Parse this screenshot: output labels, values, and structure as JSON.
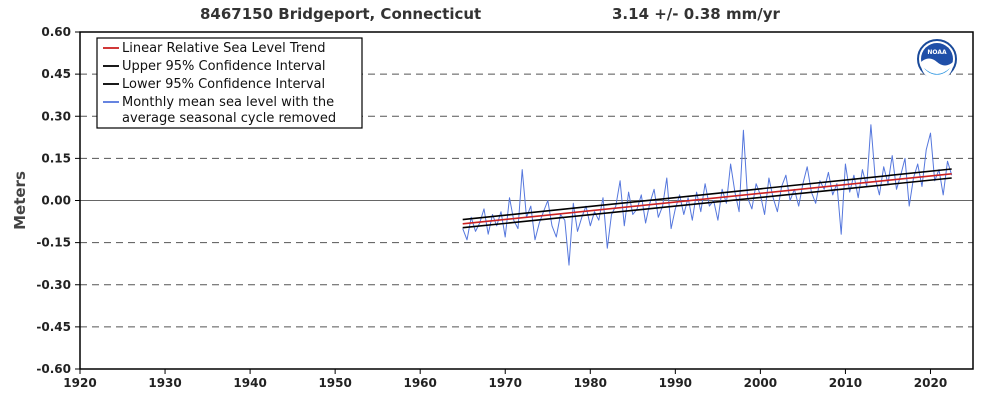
{
  "chart_data": {
    "type": "line",
    "title_station": "8467150 Bridgeport, Connecticut",
    "title_trend": "3.14 +/-  0.38 mm/yr",
    "xlabel": "",
    "ylabel": "Meters",
    "xlim": [
      1920,
      2025
    ],
    "ylim": [
      -0.6,
      0.6
    ],
    "x_ticks": [
      "1920",
      "1930",
      "1940",
      "1950",
      "1960",
      "1970",
      "1980",
      "1990",
      "2000",
      "2010",
      "2020"
    ],
    "y_ticks": [
      "0.60",
      "0.45",
      "0.30",
      "0.15",
      "0.00",
      "-0.15",
      "-0.30",
      "-0.45",
      "-0.60"
    ],
    "grid": "dashed horizontal",
    "legend_position": "top-left",
    "legend": [
      {
        "label": "Linear Relative Sea Level Trend",
        "color": "#cc2222"
      },
      {
        "label": "Upper 95% Confidence Interval",
        "color": "#000000"
      },
      {
        "label": "Lower 95% Confidence Interval",
        "color": "#000000"
      },
      {
        "label": "Monthly mean sea level with the average seasonal cycle removed",
        "label_lines": [
          "Monthly mean sea level with the",
          "average seasonal cycle removed"
        ],
        "color": "#5577dd"
      }
    ],
    "series": [
      {
        "name": "Linear Relative Sea Level Trend",
        "color": "#cc2222",
        "x": [
          1965.0,
          2022.5
        ],
        "y": [
          -0.083,
          0.095
        ]
      },
      {
        "name": "Upper 95% Confidence Interval",
        "color": "#000000",
        "x": [
          1965.0,
          2022.5
        ],
        "y": [
          -0.068,
          0.112
        ]
      },
      {
        "name": "Lower 95% Confidence Interval",
        "color": "#000000",
        "x": [
          1965.0,
          2022.5
        ],
        "y": [
          -0.097,
          0.08
        ]
      },
      {
        "name": "Monthly mean sea level with the average seasonal cycle removed",
        "color": "#5577dd",
        "x": [
          1965.0,
          1965.5,
          1966.0,
          1966.5,
          1967.0,
          1967.5,
          1968.0,
          1968.5,
          1969.0,
          1969.5,
          1970.0,
          1970.5,
          1971.0,
          1971.5,
          1972.0,
          1972.5,
          1973.0,
          1973.5,
          1974.0,
          1974.5,
          1975.0,
          1975.5,
          1976.0,
          1976.5,
          1977.0,
          1977.5,
          1978.0,
          1978.5,
          1979.0,
          1979.5,
          1980.0,
          1980.5,
          1981.0,
          1981.5,
          1982.0,
          1982.5,
          1983.0,
          1983.5,
          1984.0,
          1984.5,
          1985.0,
          1985.5,
          1986.0,
          1986.5,
          1987.0,
          1987.5,
          1988.0,
          1988.5,
          1989.0,
          1989.5,
          1990.0,
          1990.5,
          1991.0,
          1991.5,
          1992.0,
          1992.5,
          1993.0,
          1993.5,
          1994.0,
          1994.5,
          1995.0,
          1995.5,
          1996.0,
          1996.5,
          1997.0,
          1997.5,
          1998.0,
          1998.5,
          1999.0,
          1999.5,
          2000.0,
          2000.5,
          2001.0,
          2001.5,
          2002.0,
          2002.5,
          2003.0,
          2003.5,
          2004.0,
          2004.5,
          2005.0,
          2005.5,
          2006.0,
          2006.5,
          2007.0,
          2007.5,
          2008.0,
          2008.5,
          2009.0,
          2009.5,
          2010.0,
          2010.5,
          2011.0,
          2011.5,
          2012.0,
          2012.5,
          2013.0,
          2013.5,
          2014.0,
          2014.5,
          2015.0,
          2015.5,
          2016.0,
          2016.5,
          2017.0,
          2017.5,
          2018.0,
          2018.5,
          2019.0,
          2019.5,
          2020.0,
          2020.5,
          2021.0,
          2021.5,
          2022.0,
          2022.5
        ],
        "y": [
          -0.1,
          -0.14,
          -0.06,
          -0.11,
          -0.08,
          -0.03,
          -0.12,
          -0.05,
          -0.09,
          -0.04,
          -0.13,
          0.01,
          -0.07,
          -0.1,
          0.11,
          -0.06,
          -0.02,
          -0.14,
          -0.08,
          -0.04,
          0.0,
          -0.09,
          -0.13,
          -0.05,
          -0.07,
          -0.23,
          -0.01,
          -0.11,
          -0.06,
          -0.02,
          -0.09,
          -0.04,
          -0.07,
          0.01,
          -0.17,
          -0.05,
          -0.02,
          0.07,
          -0.09,
          0.03,
          -0.05,
          -0.03,
          0.02,
          -0.08,
          -0.01,
          0.04,
          -0.06,
          -0.02,
          0.08,
          -0.1,
          -0.03,
          0.02,
          -0.05,
          0.01,
          -0.07,
          0.03,
          -0.04,
          0.06,
          -0.02,
          0.0,
          -0.07,
          0.04,
          -0.01,
          0.13,
          0.03,
          -0.04,
          0.25,
          0.01,
          -0.03,
          0.06,
          0.02,
          -0.05,
          0.08,
          0.01,
          -0.04,
          0.05,
          0.09,
          0.0,
          0.04,
          -0.02,
          0.06,
          0.12,
          0.03,
          -0.01,
          0.07,
          0.04,
          0.1,
          0.02,
          0.06,
          -0.12,
          0.13,
          0.03,
          0.09,
          0.01,
          0.11,
          0.05,
          0.27,
          0.08,
          0.02,
          0.12,
          0.06,
          0.16,
          0.04,
          0.09,
          0.15,
          -0.02,
          0.08,
          0.13,
          0.05,
          0.18,
          0.24,
          0.07,
          0.11,
          0.02,
          0.14,
          0.09
        ]
      }
    ]
  }
}
